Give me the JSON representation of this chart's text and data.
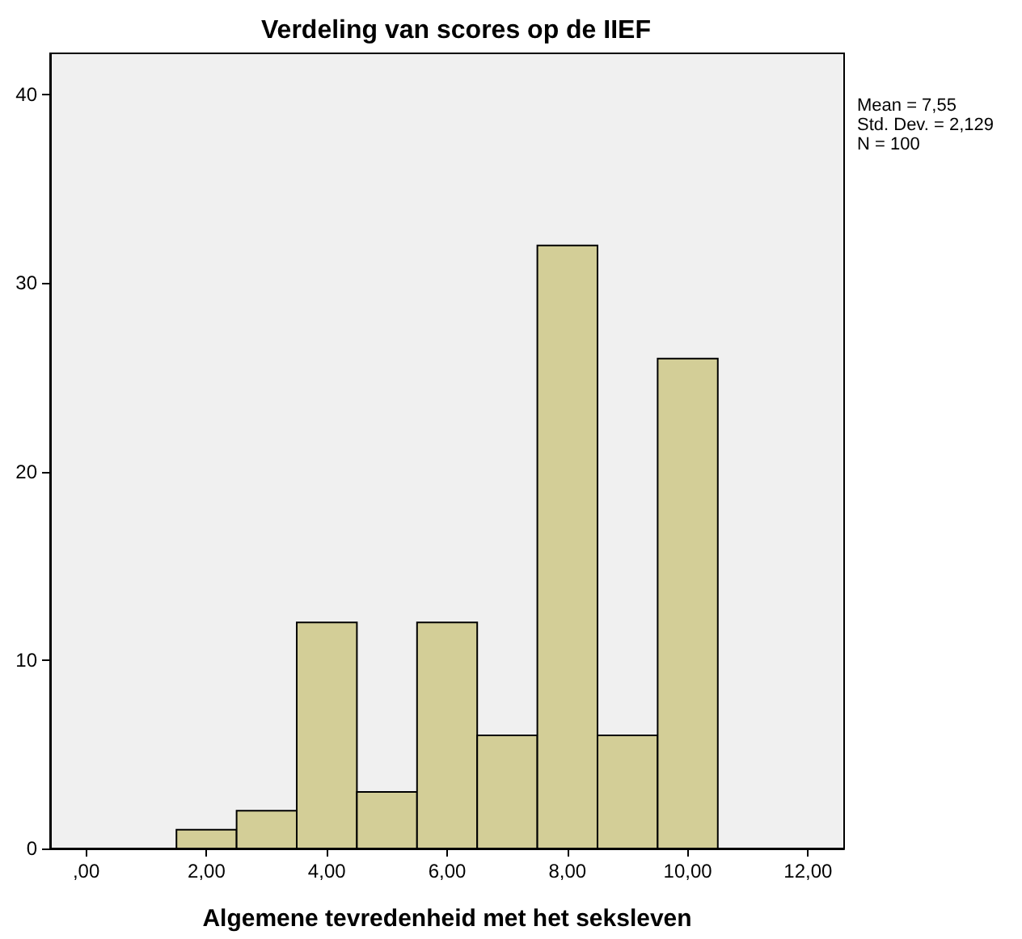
{
  "chart_data": {
    "type": "histogram",
    "title": "Verdeling van scores op de IIEF",
    "xlabel": "Algemene tevredenheid met het seksleven",
    "bins": [
      1.5,
      2.5,
      3.5,
      4.5,
      5.5,
      6.5,
      7.5,
      8.5,
      9.5,
      10.5
    ],
    "values": [
      1,
      2,
      12,
      3,
      12,
      6,
      32,
      6,
      26
    ],
    "color": "#d3ce97",
    "xlim": [
      -0.6,
      12.6
    ],
    "xticks": [
      {
        "value": 0,
        "label": ",00"
      },
      {
        "value": 2,
        "label": "2,00"
      },
      {
        "value": 4,
        "label": "4,00"
      },
      {
        "value": 6,
        "label": "6,00"
      },
      {
        "value": 8,
        "label": "8,00"
      },
      {
        "value": 10,
        "label": "10,00"
      },
      {
        "value": 12,
        "label": "12,00"
      }
    ],
    "ylim": [
      0,
      42.2
    ],
    "yticks": [
      0,
      10,
      20,
      30,
      40
    ],
    "grid": false,
    "annotations": [
      "Mean = 7,55",
      "Std. Dev. = 2,129",
      "N = 100"
    ]
  }
}
